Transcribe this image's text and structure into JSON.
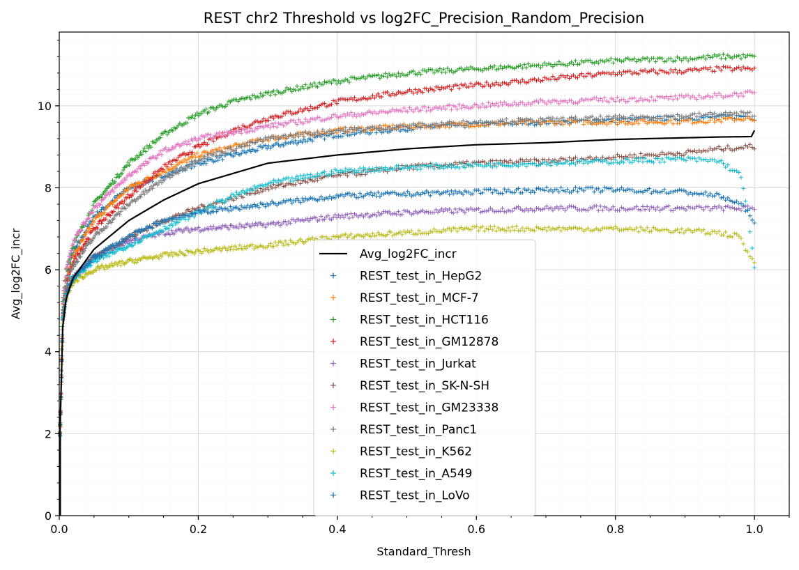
{
  "chart_data": {
    "type": "scatter",
    "title": "REST chr2 Threshold vs log2FC_Precision_Random_Precision",
    "xlabel": "Standard_Thresh",
    "ylabel": "Avg_log2FC_incr",
    "xlim": [
      0.0,
      1.05
    ],
    "ylim": [
      0,
      11.8
    ],
    "x_ticks": [
      "0.0",
      "0.2",
      "0.4",
      "0.6",
      "0.8",
      "1.0"
    ],
    "y_ticks": [
      "0",
      "2",
      "4",
      "6",
      "8",
      "10"
    ],
    "grid": true,
    "legend_placement": "lower-center",
    "line_series": {
      "name": "Avg_log2FC_incr",
      "color": "#000000",
      "x": [
        0.001,
        0.005,
        0.01,
        0.02,
        0.05,
        0.1,
        0.15,
        0.2,
        0.3,
        0.4,
        0.5,
        0.6,
        0.7,
        0.8,
        0.9,
        0.95,
        0.998,
        1.0
      ],
      "y": [
        2.0,
        4.6,
        5.3,
        5.8,
        6.5,
        7.2,
        7.7,
        8.1,
        8.6,
        8.8,
        8.95,
        9.05,
        9.1,
        9.18,
        9.22,
        9.24,
        9.25,
        9.4
      ]
    },
    "series": [
      {
        "name": "REST_test_in_HepG2",
        "color": "#1f77b4",
        "x": [
          0.001,
          0.005,
          0.01,
          0.02,
          0.05,
          0.1,
          0.15,
          0.2,
          0.3,
          0.4,
          0.5,
          0.6,
          0.7,
          0.8,
          0.9,
          0.95,
          0.99,
          1.0
        ],
        "y": [
          2.0,
          5.0,
          5.8,
          6.4,
          7.3,
          8.0,
          8.3,
          8.6,
          9.0,
          9.3,
          9.45,
          9.55,
          9.6,
          9.65,
          9.7,
          9.72,
          9.75,
          9.7
        ]
      },
      {
        "name": "REST_test_in_MCF-7",
        "color": "#ff7f0e",
        "x": [
          0.001,
          0.005,
          0.01,
          0.02,
          0.05,
          0.1,
          0.15,
          0.2,
          0.3,
          0.4,
          0.5,
          0.6,
          0.7,
          0.8,
          0.9,
          0.95,
          0.99,
          1.0
        ],
        "y": [
          2.0,
          5.0,
          5.7,
          6.3,
          7.2,
          8.0,
          8.4,
          8.8,
          9.2,
          9.4,
          9.5,
          9.55,
          9.6,
          9.6,
          9.62,
          9.65,
          9.7,
          9.6
        ]
      },
      {
        "name": "REST_test_in_HCT116",
        "color": "#2ca02c",
        "x": [
          0.001,
          0.005,
          0.01,
          0.02,
          0.05,
          0.1,
          0.15,
          0.2,
          0.25,
          0.3,
          0.4,
          0.5,
          0.6,
          0.7,
          0.8,
          0.9,
          0.95,
          1.0
        ],
        "y": [
          2.0,
          5.2,
          6.0,
          6.6,
          7.6,
          8.6,
          9.3,
          9.8,
          10.1,
          10.3,
          10.6,
          10.8,
          10.9,
          11.0,
          11.1,
          11.15,
          11.2,
          11.2
        ]
      },
      {
        "name": "REST_test_in_GM12878",
        "color": "#d62728",
        "x": [
          0.001,
          0.005,
          0.01,
          0.02,
          0.05,
          0.1,
          0.15,
          0.2,
          0.25,
          0.3,
          0.4,
          0.5,
          0.6,
          0.7,
          0.8,
          0.9,
          0.95,
          1.0
        ],
        "y": [
          2.0,
          4.9,
          5.6,
          6.2,
          7.0,
          7.8,
          8.5,
          9.0,
          9.4,
          9.7,
          10.1,
          10.35,
          10.5,
          10.65,
          10.8,
          10.85,
          10.9,
          10.9
        ]
      },
      {
        "name": "REST_test_in_Jurkat",
        "color": "#9467bd",
        "x": [
          0.001,
          0.005,
          0.01,
          0.02,
          0.05,
          0.1,
          0.15,
          0.2,
          0.3,
          0.4,
          0.5,
          0.6,
          0.7,
          0.8,
          0.9,
          0.95,
          0.99,
          1.0
        ],
        "y": [
          2.0,
          4.8,
          5.4,
          5.8,
          6.3,
          6.7,
          6.9,
          7.0,
          7.1,
          7.3,
          7.4,
          7.45,
          7.5,
          7.5,
          7.5,
          7.5,
          7.5,
          7.5
        ]
      },
      {
        "name": "REST_test_in_SK-N-SH",
        "color": "#8c564b",
        "x": [
          0.001,
          0.005,
          0.01,
          0.02,
          0.05,
          0.1,
          0.15,
          0.2,
          0.3,
          0.4,
          0.5,
          0.6,
          0.7,
          0.8,
          0.9,
          0.95,
          0.99,
          1.0
        ],
        "y": [
          2.0,
          4.8,
          5.4,
          5.8,
          6.3,
          6.8,
          7.2,
          7.5,
          8.0,
          8.3,
          8.5,
          8.6,
          8.65,
          8.75,
          8.85,
          8.95,
          9.0,
          9.0
        ]
      },
      {
        "name": "REST_test_in_GM23338",
        "color": "#e377c2",
        "x": [
          0.001,
          0.005,
          0.01,
          0.02,
          0.05,
          0.1,
          0.15,
          0.2,
          0.3,
          0.4,
          0.5,
          0.6,
          0.7,
          0.8,
          0.9,
          0.95,
          0.99,
          1.0
        ],
        "y": [
          2.0,
          5.2,
          6.0,
          6.7,
          7.5,
          8.3,
          8.9,
          9.2,
          9.5,
          9.75,
          9.9,
          10.0,
          10.1,
          10.15,
          10.2,
          10.25,
          10.3,
          10.3
        ]
      },
      {
        "name": "REST_test_in_Panc1",
        "color": "#7f7f7f",
        "x": [
          0.001,
          0.005,
          0.01,
          0.02,
          0.05,
          0.1,
          0.15,
          0.2,
          0.3,
          0.4,
          0.5,
          0.6,
          0.7,
          0.8,
          0.9,
          0.95,
          0.99,
          1.0
        ],
        "y": [
          2.0,
          4.9,
          5.6,
          6.1,
          6.8,
          7.6,
          8.2,
          8.7,
          9.2,
          9.4,
          9.5,
          9.6,
          9.65,
          9.7,
          9.75,
          9.8,
          9.8,
          9.8
        ]
      },
      {
        "name": "REST_test_in_K562",
        "color": "#bcbd22",
        "x": [
          0.001,
          0.005,
          0.01,
          0.02,
          0.05,
          0.1,
          0.15,
          0.2,
          0.3,
          0.4,
          0.5,
          0.6,
          0.7,
          0.8,
          0.9,
          0.95,
          0.98,
          0.99,
          1.0
        ],
        "y": [
          2.0,
          4.7,
          5.3,
          5.7,
          6.0,
          6.2,
          6.35,
          6.45,
          6.6,
          6.8,
          6.9,
          7.0,
          7.0,
          7.0,
          6.95,
          6.9,
          6.8,
          6.4,
          6.2
        ]
      },
      {
        "name": "REST_test_in_A549",
        "color": "#17becf",
        "x": [
          0.001,
          0.005,
          0.01,
          0.02,
          0.05,
          0.1,
          0.15,
          0.2,
          0.25,
          0.3,
          0.4,
          0.5,
          0.6,
          0.7,
          0.8,
          0.9,
          0.95,
          0.98,
          0.99,
          1.0
        ],
        "y": [
          2.0,
          4.8,
          5.4,
          5.8,
          6.2,
          6.6,
          7.0,
          7.4,
          7.8,
          8.1,
          8.4,
          8.5,
          8.55,
          8.6,
          8.65,
          8.7,
          8.65,
          8.3,
          7.5,
          6.0
        ]
      },
      {
        "name": "REST_test_in_LoVo",
        "color": "#1f77b4",
        "x": [
          0.001,
          0.005,
          0.01,
          0.02,
          0.05,
          0.1,
          0.15,
          0.2,
          0.3,
          0.4,
          0.5,
          0.6,
          0.7,
          0.8,
          0.9,
          0.95,
          0.98,
          0.99,
          1.0
        ],
        "y": [
          2.0,
          4.8,
          5.4,
          5.8,
          6.3,
          6.8,
          7.2,
          7.4,
          7.6,
          7.8,
          7.85,
          7.9,
          7.95,
          7.95,
          7.9,
          7.8,
          7.6,
          7.4,
          7.2
        ]
      }
    ]
  }
}
